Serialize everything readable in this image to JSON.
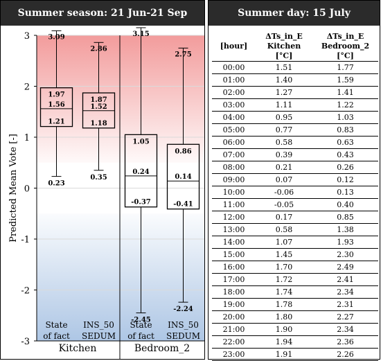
{
  "left_panel": {
    "title": "Summer season: 21 Jun-21 Sep"
  },
  "right_panel": {
    "title": "Summer day: 15 July",
    "headers": {
      "hour": "[hour]",
      "col1_l1": "ΔTs_in_E",
      "col1_l2": "Kitchen",
      "col1_unit": "[°C]",
      "col2_l1": "ΔTs_in_E",
      "col2_l2": "Bedroom_2",
      "col2_unit": "[°C]"
    },
    "rows": [
      [
        "00:00",
        "1.51",
        "1.77"
      ],
      [
        "01:00",
        "1.40",
        "1.59"
      ],
      [
        "02:00",
        "1.27",
        "1.41"
      ],
      [
        "03:00",
        "1.11",
        "1.22"
      ],
      [
        "04:00",
        "0.95",
        "1.03"
      ],
      [
        "05:00",
        "0.77",
        "0.83"
      ],
      [
        "06:00",
        "0.58",
        "0.63"
      ],
      [
        "07:00",
        "0.39",
        "0.43"
      ],
      [
        "08:00",
        "0.21",
        "0.26"
      ],
      [
        "09:00",
        "0.07",
        "0.12"
      ],
      [
        "10:00",
        "-0.06",
        "0.13"
      ],
      [
        "11:00",
        "-0.05",
        "0.40"
      ],
      [
        "12:00",
        "0.17",
        "0.85"
      ],
      [
        "13:00",
        "0.58",
        "1.38"
      ],
      [
        "14:00",
        "1.07",
        "1.93"
      ],
      [
        "15:00",
        "1.45",
        "2.30"
      ],
      [
        "16:00",
        "1.70",
        "2.49"
      ],
      [
        "17:00",
        "1.72",
        "2.41"
      ],
      [
        "18:00",
        "1.74",
        "2.34"
      ],
      [
        "19:00",
        "1.78",
        "2.31"
      ],
      [
        "20:00",
        "1.80",
        "2.27"
      ],
      [
        "21:00",
        "1.90",
        "2.34"
      ],
      [
        "22:00",
        "1.94",
        "2.36"
      ],
      [
        "23:00",
        "1.91",
        "2.26"
      ]
    ]
  },
  "chart_data": {
    "type": "boxplot",
    "ylabel": "Predicted Mean Vote  [-]",
    "ylim": [
      -3,
      3
    ],
    "yticks": [
      3,
      2,
      1,
      0,
      -1,
      -2,
      -3
    ],
    "grid": true,
    "bands": [
      {
        "from": 0.5,
        "to": 3,
        "color": "#f08a8a"
      },
      {
        "from": -3,
        "to": -0.5,
        "color": "#9fbce0"
      }
    ],
    "groups": [
      "Kitchen",
      "Bedroom_2"
    ],
    "boxes": [
      {
        "group": "Kitchen",
        "label": [
          "State",
          "of fact"
        ],
        "max": 3.09,
        "q3": 1.97,
        "median": 1.56,
        "q1": 1.21,
        "min": 0.23
      },
      {
        "group": "Kitchen",
        "label": [
          "INS_50",
          "SEDUM"
        ],
        "max": 2.86,
        "q3": 1.87,
        "median": 1.52,
        "q1": 1.18,
        "min": 0.35
      },
      {
        "group": "Bedroom_2",
        "label": [
          "State",
          "of fact"
        ],
        "max": 3.15,
        "q3": 1.05,
        "median": 0.24,
        "q1": -0.37,
        "min": -2.45
      },
      {
        "group": "Bedroom_2",
        "label": [
          "INS_50",
          "SEDUM"
        ],
        "max": 2.75,
        "q3": 0.86,
        "median": 0.14,
        "q1": -0.41,
        "min": -2.24
      }
    ]
  }
}
